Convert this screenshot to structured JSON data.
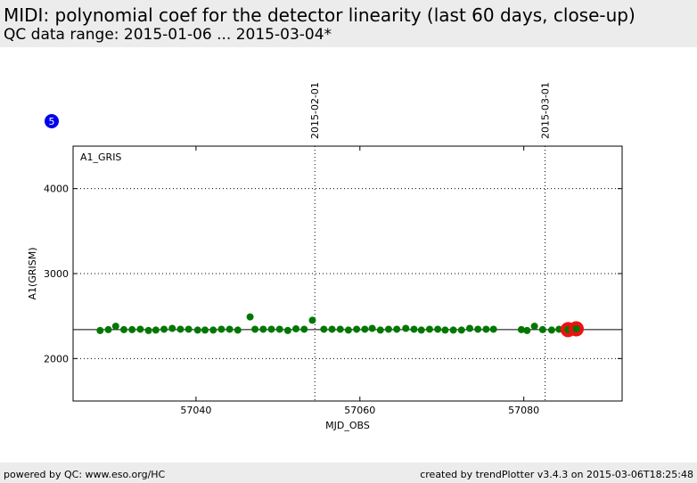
{
  "header": {
    "title": "MIDI: polynomial coef for the detector linearity (last 60 days, close-up)",
    "subtitle": "QC data range: 2015-01-06 ... 2015-03-04*"
  },
  "footer": {
    "left": "powered by QC: www.eso.org/HC",
    "right": "created by trendPlotter v3.4.3 on 2015-03-06T18:25:48"
  },
  "badge": {
    "label": "5",
    "color": "#0000ee"
  },
  "colors": {
    "points": "#007700",
    "latest": "#ee1111",
    "line": "#000000"
  },
  "chart_data": {
    "type": "scatter",
    "panel_label": "A1_GRIS",
    "xlabel": "MJD_OBS",
    "ylabel": "A1(GRISM)",
    "xlim": [
      57025,
      57092
    ],
    "ylim": [
      1500,
      4500
    ],
    "xticks": [
      57040,
      57060,
      57080
    ],
    "yticks": [
      2000,
      3000,
      4000
    ],
    "grid": "dotted horizontal at y ticks",
    "reference_line": 2340,
    "date_markers": [
      {
        "x": 57054.5,
        "label": "2015-02-01"
      },
      {
        "x": 57082.6,
        "label": "2015-03-01"
      }
    ],
    "series": [
      {
        "x": [
          57028.3,
          57029.3,
          57030.2,
          57031.2,
          57032.2,
          57033.2,
          57034.2,
          57035.1,
          57036.1,
          57037.1,
          57038.1,
          57039.1,
          57040.2,
          57041.1,
          57042.1,
          57043.1,
          57044.1,
          57045.1,
          57046.6,
          57047.2,
          57048.2,
          57049.2,
          57050.2,
          57051.2,
          57052.2,
          57053.2,
          57054.2,
          57055.6,
          57056.6,
          57057.6,
          57058.6,
          57059.6,
          57060.6,
          57061.5,
          57062.5,
          57063.5,
          57064.5,
          57065.6,
          57066.6,
          57067.5,
          57068.5,
          57069.5,
          57070.4,
          57071.4,
          57072.4,
          57073.4,
          57074.4,
          57075.4,
          57076.3,
          57079.7,
          57080.4,
          57081.3,
          57082.3,
          57083.4,
          57084.3,
          57085.3,
          57086.3
        ],
        "y": [
          2330,
          2340,
          2380,
          2340,
          2340,
          2345,
          2330,
          2335,
          2345,
          2355,
          2345,
          2345,
          2335,
          2335,
          2335,
          2345,
          2345,
          2335,
          2490,
          2345,
          2345,
          2345,
          2345,
          2330,
          2350,
          2345,
          2450,
          2345,
          2345,
          2345,
          2335,
          2345,
          2345,
          2355,
          2335,
          2345,
          2345,
          2355,
          2345,
          2335,
          2345,
          2345,
          2335,
          2335,
          2335,
          2355,
          2345,
          2345,
          2345,
          2340,
          2330,
          2380,
          2340,
          2335,
          2345,
          2340,
          2345
        ]
      },
      {
        "x": [
          57085.4,
          57086.4
        ],
        "y": [
          2340,
          2350
        ]
      }
    ]
  }
}
